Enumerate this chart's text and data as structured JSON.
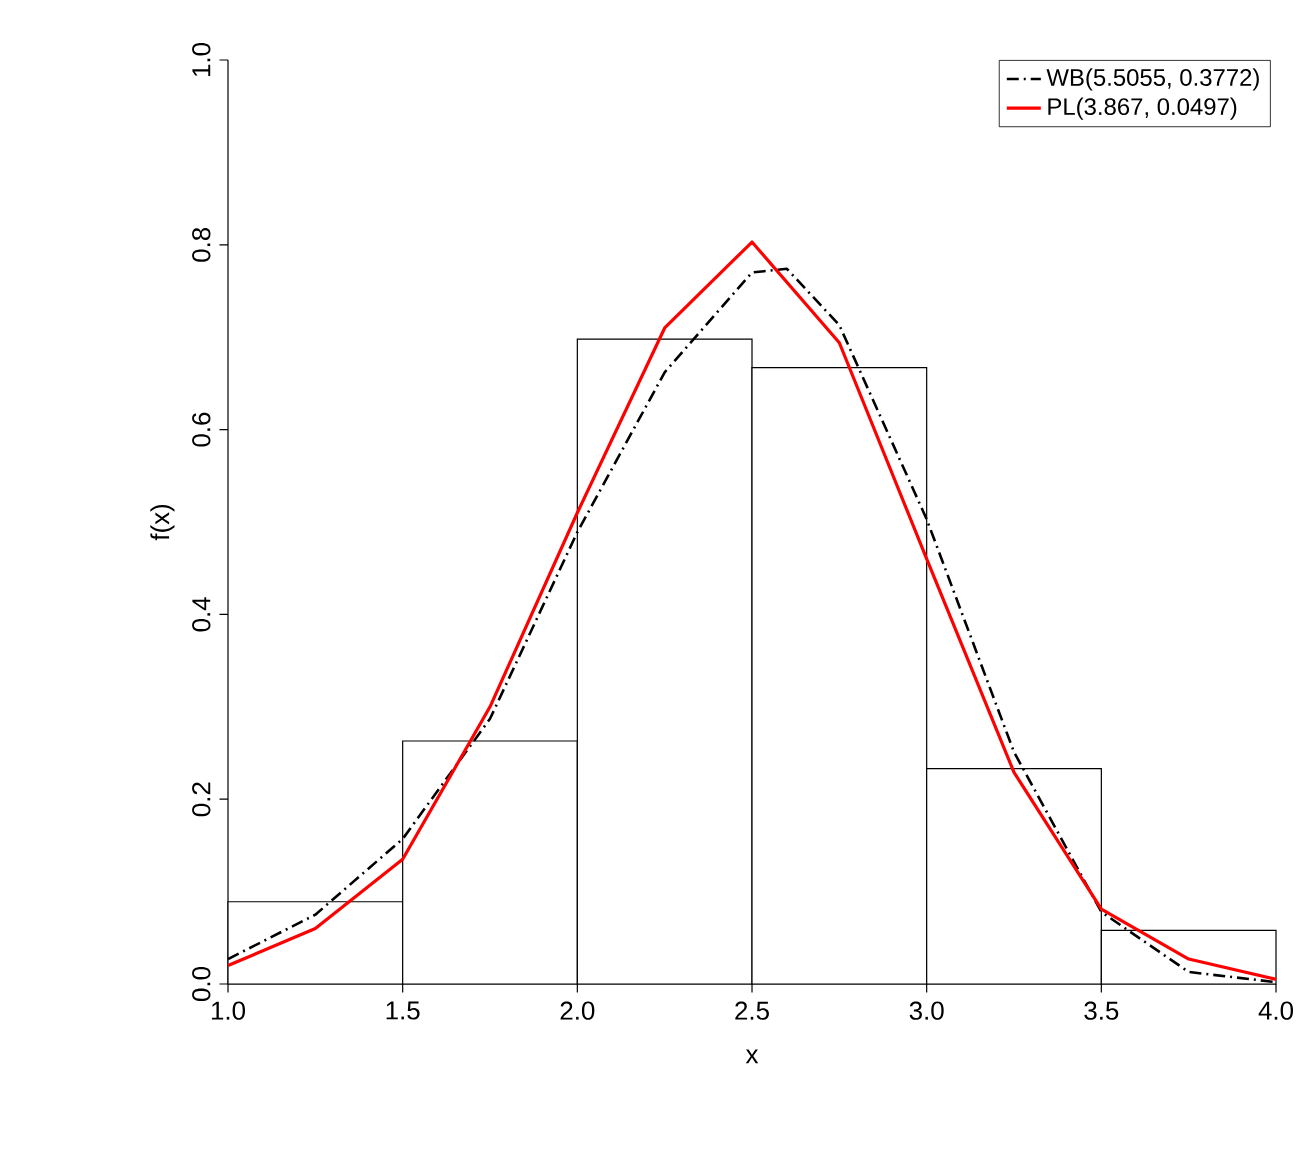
{
  "chart_data": {
    "type": "histogram",
    "xlabel": "x",
    "ylabel": "f(x)",
    "bins": [
      1.0,
      1.5,
      2.0,
      2.5,
      3.0,
      3.5,
      4.0
    ],
    "values": [
      0.089,
      0.263,
      0.698,
      0.667,
      0.233,
      0.058
    ],
    "series": [
      {
        "name": "WB(5.5055, 0.3772)",
        "type": "line",
        "color": "#000000",
        "line_style": "dashed",
        "x": [
          1.0,
          1.25,
          1.5,
          1.75,
          2.0,
          2.25,
          2.5,
          2.6,
          2.75,
          3.0,
          3.25,
          3.5,
          3.75,
          4.0
        ],
        "values": [
          0.027,
          0.075,
          0.157,
          0.287,
          0.489,
          0.662,
          0.77,
          0.774,
          0.713,
          0.503,
          0.251,
          0.078,
          0.013,
          0.002
        ]
      },
      {
        "name": "PL(3.867, 0.0497)",
        "type": "line",
        "color": "#ff0000",
        "line_style": "solid",
        "x": [
          1.0,
          1.25,
          1.5,
          1.75,
          2.0,
          2.25,
          2.5,
          2.75,
          3.0,
          3.25,
          3.5,
          3.75,
          4.0
        ],
        "values": [
          0.02,
          0.06,
          0.135,
          0.3,
          0.51,
          0.71,
          0.803,
          0.694,
          0.46,
          0.229,
          0.081,
          0.027,
          0.005
        ]
      }
    ],
    "xlim": [
      1.0,
      4.0
    ],
    "ylim": [
      0,
      1.0
    ],
    "xticks": [
      {
        "value": 1.0,
        "label": "1.0"
      },
      1.5,
      {
        "value": 2.0,
        "label": "2.0"
      },
      2.5,
      {
        "value": 3.0,
        "label": "3.0"
      },
      3.5,
      {
        "value": 4.0,
        "label": "4.0"
      }
    ],
    "yticks": [
      {
        "value": 0,
        "label": "0.0"
      },
      0.2,
      0.4,
      0.6,
      0.8,
      {
        "value": 1.0,
        "label": "1.0"
      }
    ],
    "legend": "top right",
    "marker": "none"
  }
}
